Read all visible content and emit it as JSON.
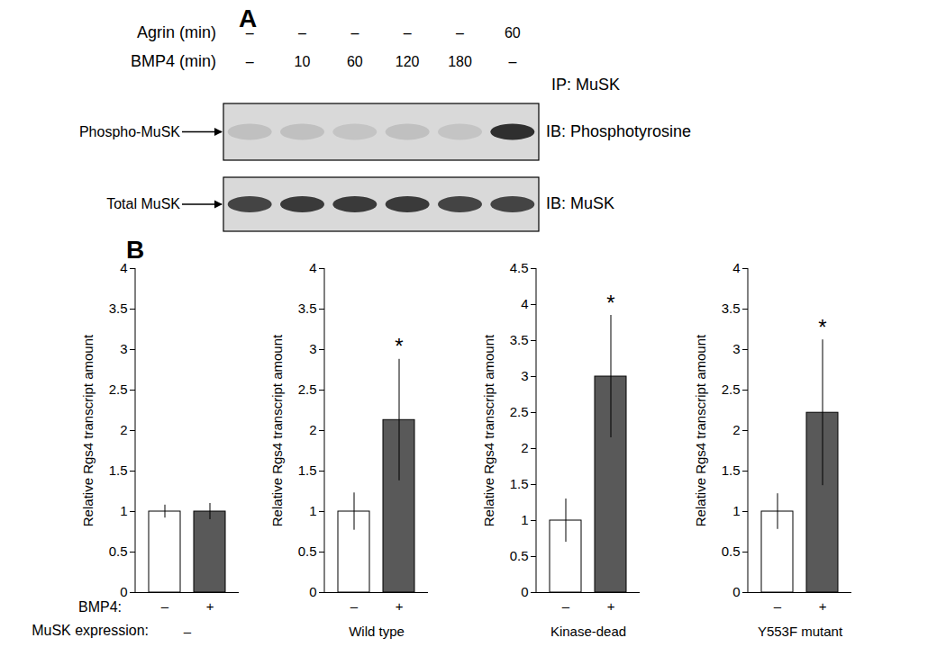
{
  "blot": {
    "panel": "A",
    "rows": [
      {
        "label": "Agrin (min)",
        "lanes": [
          "–",
          "–",
          "–",
          "–",
          "–",
          "60"
        ]
      },
      {
        "label": "BMP4 (min)",
        "lanes": [
          "–",
          "10",
          "60",
          "120",
          "180",
          "–"
        ]
      }
    ],
    "ip": "IP: MuSK",
    "strips": [
      {
        "band": "Phospho-MuSK",
        "antibody": "IB: Phosphotyrosine",
        "intensity": [
          0.12,
          0.12,
          0.1,
          0.12,
          0.1,
          0.85
        ]
      },
      {
        "band": "Total MuSK",
        "antibody": "IB: MuSK",
        "intensity": [
          0.75,
          0.8,
          0.8,
          0.8,
          0.75,
          0.75
        ]
      }
    ]
  },
  "panel_b": {
    "panel": "B",
    "row_labels": [
      "BMP4:",
      "MuSK expression:"
    ]
  },
  "chart_data": [
    {
      "type": "bar",
      "ylabel": "Relative Rgs4 transcript amount",
      "xlabel": "–",
      "categories": [
        "–",
        "+"
      ],
      "values": [
        1,
        1
      ],
      "errors": [
        0.08,
        0.1
      ],
      "significance": [
        null,
        null
      ],
      "colors": [
        "#ffffff",
        "#595959"
      ],
      "ylim": [
        0,
        4
      ],
      "yticks": [
        0,
        0.5,
        1,
        1.5,
        2,
        2.5,
        3,
        3.5,
        4
      ]
    },
    {
      "type": "bar",
      "ylabel": "Relative Rgs4 transcript amount",
      "xlabel": "Wild type",
      "categories": [
        "–",
        "+"
      ],
      "values": [
        1,
        2.13
      ],
      "errors": [
        0.23,
        0.75
      ],
      "significance": [
        null,
        "*"
      ],
      "colors": [
        "#ffffff",
        "#595959"
      ],
      "ylim": [
        0,
        4
      ],
      "yticks": [
        0,
        0.5,
        1,
        1.5,
        2,
        2.5,
        3,
        3.5,
        4
      ]
    },
    {
      "type": "bar",
      "ylabel": "Relative Rgs4 transcript amount",
      "xlabel": "Kinase-dead",
      "categories": [
        "–",
        "+"
      ],
      "values": [
        1,
        3.0
      ],
      "errors": [
        0.3,
        0.85
      ],
      "significance": [
        null,
        "*"
      ],
      "colors": [
        "#ffffff",
        "#595959"
      ],
      "ylim": [
        0,
        4.5
      ],
      "yticks": [
        0,
        0.5,
        1,
        1.5,
        2,
        2.5,
        3,
        3.5,
        4,
        4.5
      ]
    },
    {
      "type": "bar",
      "ylabel": "Relative Rgs4 transcript amount",
      "xlabel": "Y553F mutant",
      "categories": [
        "–",
        "+"
      ],
      "values": [
        1,
        2.22
      ],
      "errors": [
        0.22,
        0.9
      ],
      "significance": [
        null,
        "*"
      ],
      "colors": [
        "#ffffff",
        "#595959"
      ],
      "ylim": [
        0,
        4
      ],
      "yticks": [
        0,
        0.5,
        1,
        1.5,
        2,
        2.5,
        3,
        3.5,
        4
      ]
    }
  ]
}
